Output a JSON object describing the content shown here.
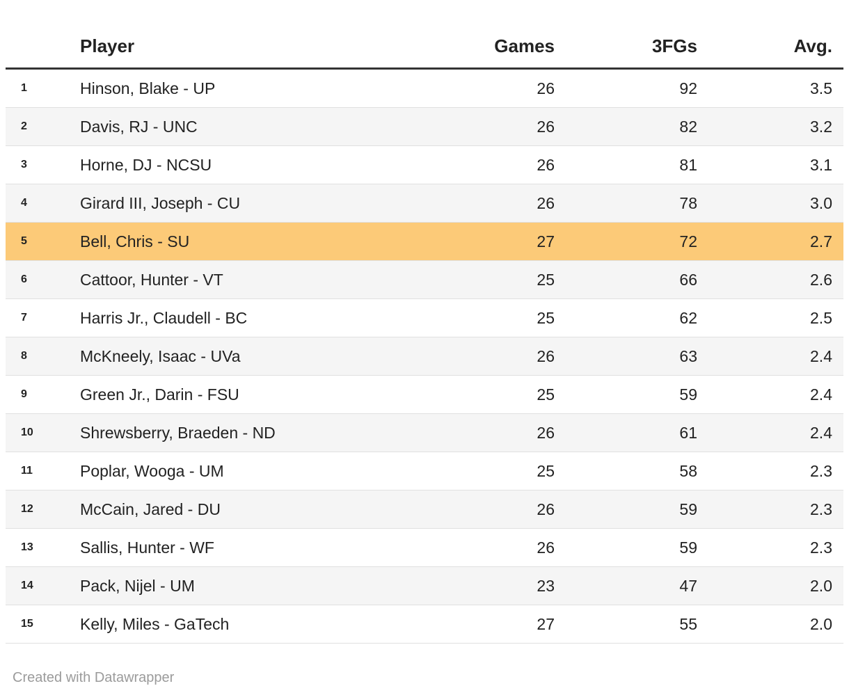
{
  "chart_data": {
    "type": "table",
    "columns": [
      {
        "key": "rank",
        "label": "",
        "align": "left"
      },
      {
        "key": "player",
        "label": "Player",
        "align": "left"
      },
      {
        "key": "games",
        "label": "Games",
        "align": "right"
      },
      {
        "key": "fgs",
        "label": "3FGs",
        "align": "right"
      },
      {
        "key": "avg",
        "label": "Avg.",
        "align": "right"
      }
    ],
    "rows": [
      {
        "rank": 1,
        "player": "Hinson, Blake - UP",
        "games": 26,
        "fgs": 92,
        "avg": "3.5"
      },
      {
        "rank": 2,
        "player": "Davis, RJ - UNC",
        "games": 26,
        "fgs": 82,
        "avg": "3.2"
      },
      {
        "rank": 3,
        "player": "Horne, DJ - NCSU",
        "games": 26,
        "fgs": 81,
        "avg": "3.1"
      },
      {
        "rank": 4,
        "player": "Girard III, Joseph - CU",
        "games": 26,
        "fgs": 78,
        "avg": "3.0"
      },
      {
        "rank": 5,
        "player": "Bell, Chris - SU",
        "games": 27,
        "fgs": 72,
        "avg": "2.7"
      },
      {
        "rank": 6,
        "player": "Cattoor, Hunter - VT",
        "games": 25,
        "fgs": 66,
        "avg": "2.6"
      },
      {
        "rank": 7,
        "player": "Harris Jr., Claudell - BC",
        "games": 25,
        "fgs": 62,
        "avg": "2.5"
      },
      {
        "rank": 8,
        "player": "McKneely, Isaac - UVa",
        "games": 26,
        "fgs": 63,
        "avg": "2.4"
      },
      {
        "rank": 9,
        "player": "Green Jr., Darin - FSU",
        "games": 25,
        "fgs": 59,
        "avg": "2.4"
      },
      {
        "rank": 10,
        "player": "Shrewsberry, Braeden - ND",
        "games": 26,
        "fgs": 61,
        "avg": "2.4"
      },
      {
        "rank": 11,
        "player": "Poplar, Wooga - UM",
        "games": 25,
        "fgs": 58,
        "avg": "2.3"
      },
      {
        "rank": 12,
        "player": "McCain, Jared - DU",
        "games": 26,
        "fgs": 59,
        "avg": "2.3"
      },
      {
        "rank": 13,
        "player": "Sallis, Hunter - WF",
        "games": 26,
        "fgs": 59,
        "avg": "2.3"
      },
      {
        "rank": 14,
        "player": "Pack, Nijel - UM",
        "games": 23,
        "fgs": 47,
        "avg": "2.0"
      },
      {
        "rank": 15,
        "player": "Kelly, Miles - GaTech",
        "games": 27,
        "fgs": 55,
        "avg": "2.0"
      }
    ],
    "highlighted_row_rank": 5,
    "layout": {
      "striped_rows": "even",
      "grid": "horizontal-only",
      "legend": "none"
    }
  },
  "footer": {
    "attribution": "Created with Datawrapper"
  },
  "colors": {
    "highlight": "#FCCA78",
    "stripe": "#F5F5F5",
    "row_border": "#E0E0E0",
    "header_border": "#333333",
    "text": "#222222",
    "footer_text": "#9B9B9B"
  }
}
